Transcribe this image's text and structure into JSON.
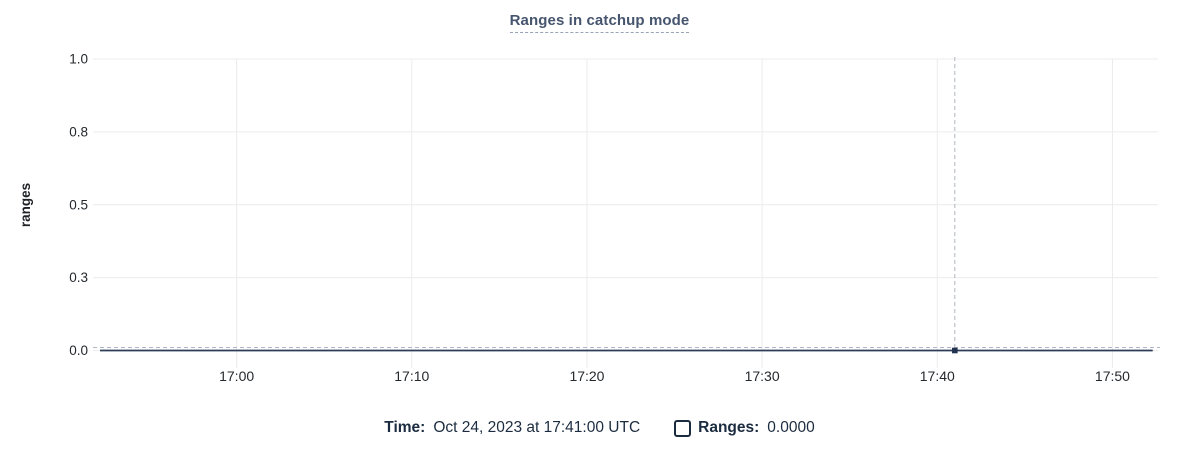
{
  "chart": {
    "title": "Ranges in catchup mode"
  },
  "legend": {
    "time_label": "Time:",
    "time_value": "Oct 24, 2023 at 17:41:00 UTC",
    "series": [
      {
        "label": "Ranges:",
        "value": "0.0000",
        "checked": false
      }
    ]
  },
  "chart_data": {
    "type": "line",
    "title": "Ranges in catchup mode",
    "xlabel": "",
    "ylabel": "ranges",
    "x_tick_labels": [
      "17:00",
      "17:10",
      "17:20",
      "17:30",
      "17:40",
      "17:50"
    ],
    "x_tick_minutes": [
      0,
      10,
      20,
      30,
      40,
      50
    ],
    "x_range_minutes": [
      -8.2,
      52.6
    ],
    "y_tick_labels": [
      "0.0",
      "0.3",
      "0.5",
      "0.8",
      "1.0"
    ],
    "y_tick_values": [
      0,
      0.25,
      0.5,
      0.75,
      1.0
    ],
    "ylim": [
      0,
      1
    ],
    "grid": true,
    "legend_position": "bottom",
    "series": [
      {
        "name": "Ranges",
        "color": "#2b3d59",
        "points": [
          {
            "minute": -7.8,
            "value": 0
          },
          {
            "minute": 52.3,
            "value": 0
          }
        ]
      }
    ],
    "cursor": {
      "x_minute": 41,
      "value": 0,
      "time_label": "Oct 24, 2023 at 17:41:00 UTC",
      "value_label": "0.0000"
    }
  },
  "colors": {
    "title": "#46556e",
    "axis_text": "#24292e",
    "grid": "#ececec",
    "series_line": "#2b3d59",
    "cursor_dash": "#aeb6c2",
    "point": "#223350",
    "legend_text": "#1c2c40"
  }
}
